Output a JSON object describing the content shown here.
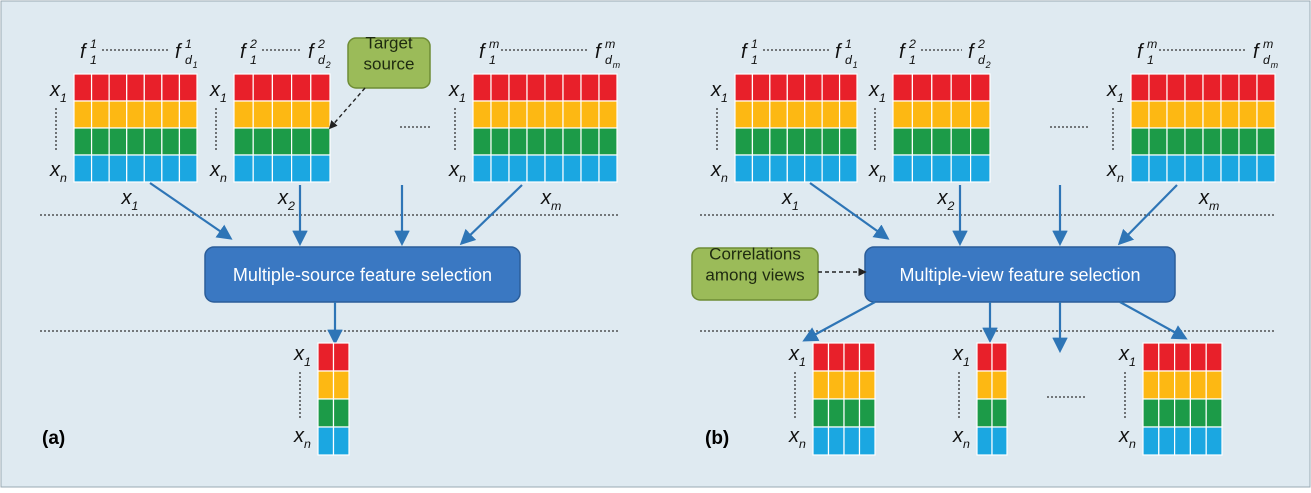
{
  "panels": [
    {
      "tag": "(a)",
      "inputs": [
        {
          "f_first": {
            "base": "f",
            "sub": "1",
            "sup": "1"
          },
          "f_last": {
            "base": "f",
            "sub": "d",
            "subsub": "1",
            "sup": "1"
          },
          "x_first": {
            "base": "x",
            "sub": "1"
          },
          "x_last": {
            "base": "x",
            "sub": "n"
          },
          "name": {
            "base": "x",
            "sub": "1"
          }
        },
        {
          "f_first": {
            "base": "f",
            "sub": "1",
            "sup": "2"
          },
          "f_last": {
            "base": "f",
            "sub": "d",
            "subsub": "2",
            "sup": "2"
          },
          "x_first": {
            "base": "x",
            "sub": "1"
          },
          "x_last": {
            "base": "x",
            "sub": "n"
          },
          "name": {
            "base": "x",
            "sub": "2"
          }
        },
        {
          "f_first": {
            "base": "f",
            "sub": "1",
            "sup": "m"
          },
          "f_last": {
            "base": "f",
            "sub": "d",
            "subsub": "m",
            "sup": "m"
          },
          "x_first": {
            "base": "x",
            "sub": "1"
          },
          "x_last": {
            "base": "x",
            "sub": "n"
          },
          "name": {
            "base": "x",
            "sub": "m"
          }
        }
      ],
      "method": "Multiple-source feature selection",
      "note": [
        "Target",
        "source"
      ],
      "outputs": [
        {
          "x_first": {
            "base": "x",
            "sub": "1"
          },
          "x_last": {
            "base": "x",
            "sub": "n"
          }
        }
      ]
    },
    {
      "tag": "(b)",
      "inputs": [
        {
          "f_first": {
            "base": "f",
            "sub": "1",
            "sup": "1"
          },
          "f_last": {
            "base": "f",
            "sub": "d",
            "subsub": "1",
            "sup": "1"
          },
          "x_first": {
            "base": "x",
            "sub": "1"
          },
          "x_last": {
            "base": "x",
            "sub": "n"
          },
          "name": {
            "base": "x",
            "sub": "1"
          }
        },
        {
          "f_first": {
            "base": "f",
            "sub": "1",
            "sup": "2"
          },
          "f_last": {
            "base": "f",
            "sub": "d",
            "subsub": "2",
            "sup": "2"
          },
          "x_first": {
            "base": "x",
            "sub": "1"
          },
          "x_last": {
            "base": "x",
            "sub": "n"
          },
          "name": {
            "base": "x",
            "sub": "2"
          }
        },
        {
          "f_first": {
            "base": "f",
            "sub": "1",
            "sup": "m"
          },
          "f_last": {
            "base": "f",
            "sub": "d",
            "subsub": "m",
            "sup": "m"
          },
          "x_first": {
            "base": "x",
            "sub": "1"
          },
          "x_last": {
            "base": "x",
            "sub": "n"
          },
          "name": {
            "base": "x",
            "sub": "m"
          }
        }
      ],
      "method": "Multiple-view feature selection",
      "note": [
        "Correlations",
        "among views"
      ],
      "outputs": [
        {
          "x_first": {
            "base": "x",
            "sub": "1"
          },
          "x_last": {
            "base": "x",
            "sub": "n"
          }
        },
        {
          "x_first": {
            "base": "x",
            "sub": "1"
          },
          "x_last": {
            "base": "x",
            "sub": "n"
          }
        },
        {
          "x_first": {
            "base": "x",
            "sub": "1"
          },
          "x_last": {
            "base": "x",
            "sub": "n"
          }
        }
      ]
    }
  ]
}
